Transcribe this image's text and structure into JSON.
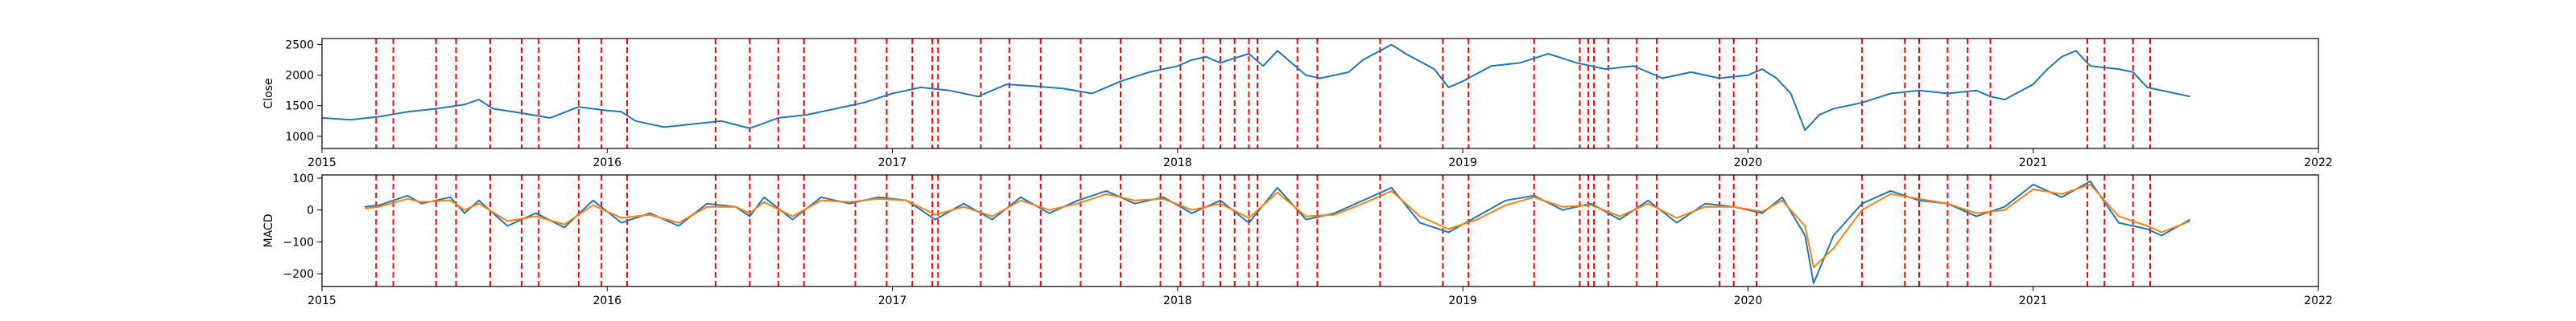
{
  "chart_data": [
    {
      "type": "line",
      "title": "",
      "xlabel": "",
      "ylabel": "Close",
      "xlim": [
        2015.0,
        2022.0
      ],
      "ylim": [
        800,
        2600
      ],
      "xticks": [
        2015,
        2016,
        2017,
        2018,
        2019,
        2020,
        2021,
        2022
      ],
      "xtick_labels": [
        "2015",
        "2016",
        "2017",
        "2018",
        "2019",
        "2020",
        "2021",
        "2022"
      ],
      "yticks": [
        1000,
        1500,
        2000,
        2500
      ],
      "ytick_labels": [
        "1000",
        "1500",
        "2000",
        "2500"
      ],
      "grid": false,
      "colors": {
        "close": "#1f77b4",
        "signal_lines": "#ff0000"
      },
      "series": [
        {
          "x": [
            2015.0,
            2015.1,
            2015.2,
            2015.3,
            2015.4,
            2015.5,
            2015.55,
            2015.6,
            2015.7,
            2015.8,
            2015.9,
            2016.0,
            2016.05,
            2016.1,
            2016.2,
            2016.3,
            2016.4,
            2016.5,
            2016.6,
            2016.7,
            2016.8,
            2016.9,
            2017.0,
            2017.1,
            2017.2,
            2017.3,
            2017.4,
            2017.5,
            2017.6,
            2017.7,
            2017.8,
            2017.9,
            2018.0,
            2018.05,
            2018.1,
            2018.15,
            2018.2,
            2018.25,
            2018.3,
            2018.35,
            2018.45,
            2018.5,
            2018.6,
            2018.65,
            2018.75,
            2018.8,
            2018.9,
            2018.95,
            2019.0,
            2019.1,
            2019.2,
            2019.3,
            2019.4,
            2019.5,
            2019.6,
            2019.7,
            2019.8,
            2019.9,
            2020.0,
            2020.05,
            2020.1,
            2020.15,
            2020.2,
            2020.25,
            2020.3,
            2020.4,
            2020.5,
            2020.6,
            2020.7,
            2020.8,
            2020.85,
            2020.9,
            2021.0,
            2021.05,
            2021.1,
            2021.15,
            2021.2,
            2021.3,
            2021.35,
            2021.4,
            2021.5,
            2021.55
          ],
          "values": [
            1300,
            1270,
            1320,
            1400,
            1450,
            1520,
            1600,
            1450,
            1380,
            1300,
            1480,
            1420,
            1400,
            1250,
            1150,
            1200,
            1250,
            1130,
            1300,
            1350,
            1450,
            1550,
            1700,
            1800,
            1750,
            1650,
            1850,
            1820,
            1780,
            1700,
            1900,
            2050,
            2150,
            2250,
            2300,
            2200,
            2280,
            2350,
            2150,
            2400,
            2000,
            1950,
            2050,
            2250,
            2500,
            2350,
            2100,
            1800,
            1900,
            2150,
            2200,
            2350,
            2200,
            2100,
            2150,
            1950,
            2050,
            1950,
            2000,
            2100,
            1950,
            1700,
            1100,
            1350,
            1450,
            1550,
            1700,
            1750,
            1700,
            1750,
            1650,
            1600,
            1850,
            2100,
            2300,
            2400,
            2150,
            2100,
            2050,
            1800,
            1700,
            1650
          ]
        }
      ],
      "signal_dates": [
        2015.19,
        2015.25,
        2015.4,
        2015.47,
        2015.59,
        2015.7,
        2015.76,
        2015.9,
        2015.98,
        2016.07,
        2016.38,
        2016.5,
        2016.6,
        2016.69,
        2016.87,
        2016.98,
        2017.07,
        2017.14,
        2017.16,
        2017.31,
        2017.41,
        2017.52,
        2017.66,
        2017.8,
        2017.94,
        2018.01,
        2018.09,
        2018.15,
        2018.2,
        2018.25,
        2018.28,
        2018.42,
        2018.49,
        2018.71,
        2018.93,
        2019.02,
        2019.25,
        2019.41,
        2019.44,
        2019.46,
        2019.51,
        2019.61,
        2019.68,
        2019.9,
        2019.95,
        2020.03,
        2020.4,
        2020.55,
        2020.6,
        2020.7,
        2020.77,
        2020.85,
        2021.19,
        2021.25,
        2021.35,
        2021.41
      ]
    },
    {
      "type": "line",
      "title": "",
      "xlabel": "",
      "ylabel": "MACD",
      "xlim": [
        2015.0,
        2022.0
      ],
      "ylim": [
        -240,
        110
      ],
      "xticks": [
        2015,
        2016,
        2017,
        2018,
        2019,
        2020,
        2021,
        2022
      ],
      "xtick_labels": [
        "2015",
        "2016",
        "2017",
        "2018",
        "2019",
        "2020",
        "2021",
        "2022"
      ],
      "yticks": [
        -200,
        -100,
        0,
        100
      ],
      "ytick_labels": [
        "−200",
        "−100",
        "0",
        "100"
      ],
      "grid": false,
      "colors": {
        "macd": "#1f77b4",
        "signal": "#ff7f0e",
        "signal_lines": "#ff0000"
      },
      "series": [
        {
          "x": [
            2015.15,
            2015.2,
            2015.3,
            2015.35,
            2015.45,
            2015.5,
            2015.55,
            2015.65,
            2015.75,
            2015.85,
            2015.95,
            2016.05,
            2016.15,
            2016.25,
            2016.35,
            2016.45,
            2016.5,
            2016.55,
            2016.65,
            2016.75,
            2016.85,
            2016.95,
            2017.05,
            2017.15,
            2017.25,
            2017.35,
            2017.45,
            2017.55,
            2017.65,
            2017.75,
            2017.85,
            2017.95,
            2018.05,
            2018.15,
            2018.25,
            2018.35,
            2018.45,
            2018.55,
            2018.65,
            2018.75,
            2018.85,
            2018.95,
            2019.05,
            2019.15,
            2019.25,
            2019.35,
            2019.45,
            2019.55,
            2019.65,
            2019.75,
            2019.85,
            2019.95,
            2020.05,
            2020.12,
            2020.2,
            2020.23,
            2020.3,
            2020.4,
            2020.5,
            2020.6,
            2020.7,
            2020.8,
            2020.9,
            2021.0,
            2021.1,
            2021.2,
            2021.3,
            2021.4,
            2021.45,
            2021.55
          ],
          "values": [
            10,
            15,
            45,
            20,
            40,
            -10,
            30,
            -50,
            -10,
            -55,
            30,
            -40,
            -10,
            -50,
            20,
            10,
            -20,
            40,
            -30,
            40,
            20,
            40,
            30,
            -30,
            20,
            -30,
            40,
            -10,
            30,
            60,
            20,
            40,
            -10,
            30,
            -40,
            70,
            -30,
            -10,
            30,
            70,
            -40,
            -70,
            -20,
            30,
            45,
            0,
            20,
            -30,
            30,
            -40,
            20,
            10,
            -10,
            40,
            -80,
            -230,
            -80,
            20,
            60,
            30,
            20,
            -20,
            10,
            80,
            40,
            90,
            -40,
            -60,
            -80,
            -30
          ]
        },
        {
          "x": [
            2015.15,
            2015.2,
            2015.3,
            2015.35,
            2015.45,
            2015.5,
            2015.55,
            2015.65,
            2015.75,
            2015.85,
            2015.95,
            2016.05,
            2016.15,
            2016.25,
            2016.35,
            2016.45,
            2016.5,
            2016.55,
            2016.65,
            2016.75,
            2016.85,
            2016.95,
            2017.05,
            2017.15,
            2017.25,
            2017.35,
            2017.45,
            2017.55,
            2017.65,
            2017.75,
            2017.85,
            2017.95,
            2018.05,
            2018.15,
            2018.25,
            2018.35,
            2018.45,
            2018.55,
            2018.65,
            2018.75,
            2018.85,
            2018.95,
            2019.05,
            2019.15,
            2019.25,
            2019.35,
            2019.45,
            2019.55,
            2019.65,
            2019.75,
            2019.85,
            2019.95,
            2020.05,
            2020.12,
            2020.2,
            2020.23,
            2020.3,
            2020.4,
            2020.5,
            2020.6,
            2020.7,
            2020.8,
            2020.9,
            2021.0,
            2021.1,
            2021.2,
            2021.3,
            2021.4,
            2021.45,
            2021.55
          ],
          "values": [
            5,
            10,
            35,
            25,
            30,
            0,
            20,
            -35,
            -20,
            -45,
            15,
            -25,
            -15,
            -40,
            10,
            10,
            -10,
            25,
            -20,
            30,
            25,
            35,
            30,
            -15,
            10,
            -20,
            30,
            0,
            20,
            50,
            30,
            35,
            0,
            20,
            -25,
            55,
            -20,
            -15,
            20,
            60,
            -20,
            -60,
            -30,
            15,
            40,
            10,
            15,
            -20,
            20,
            -25,
            10,
            10,
            -5,
            30,
            -50,
            -180,
            -120,
            0,
            50,
            35,
            20,
            -10,
            0,
            65,
            50,
            80,
            -20,
            -50,
            -70,
            -35
          ]
        }
      ],
      "signal_dates": [
        2015.19,
        2015.25,
        2015.4,
        2015.47,
        2015.59,
        2015.7,
        2015.76,
        2015.9,
        2015.98,
        2016.07,
        2016.38,
        2016.5,
        2016.6,
        2016.69,
        2016.87,
        2016.98,
        2017.07,
        2017.14,
        2017.16,
        2017.31,
        2017.41,
        2017.52,
        2017.66,
        2017.8,
        2017.94,
        2018.01,
        2018.09,
        2018.15,
        2018.2,
        2018.25,
        2018.28,
        2018.42,
        2018.49,
        2018.71,
        2018.93,
        2019.02,
        2019.25,
        2019.41,
        2019.44,
        2019.46,
        2019.51,
        2019.61,
        2019.68,
        2019.9,
        2019.95,
        2020.03,
        2020.4,
        2020.55,
        2020.6,
        2020.7,
        2020.77,
        2020.85,
        2021.19,
        2021.25,
        2021.35,
        2021.41
      ]
    }
  ]
}
